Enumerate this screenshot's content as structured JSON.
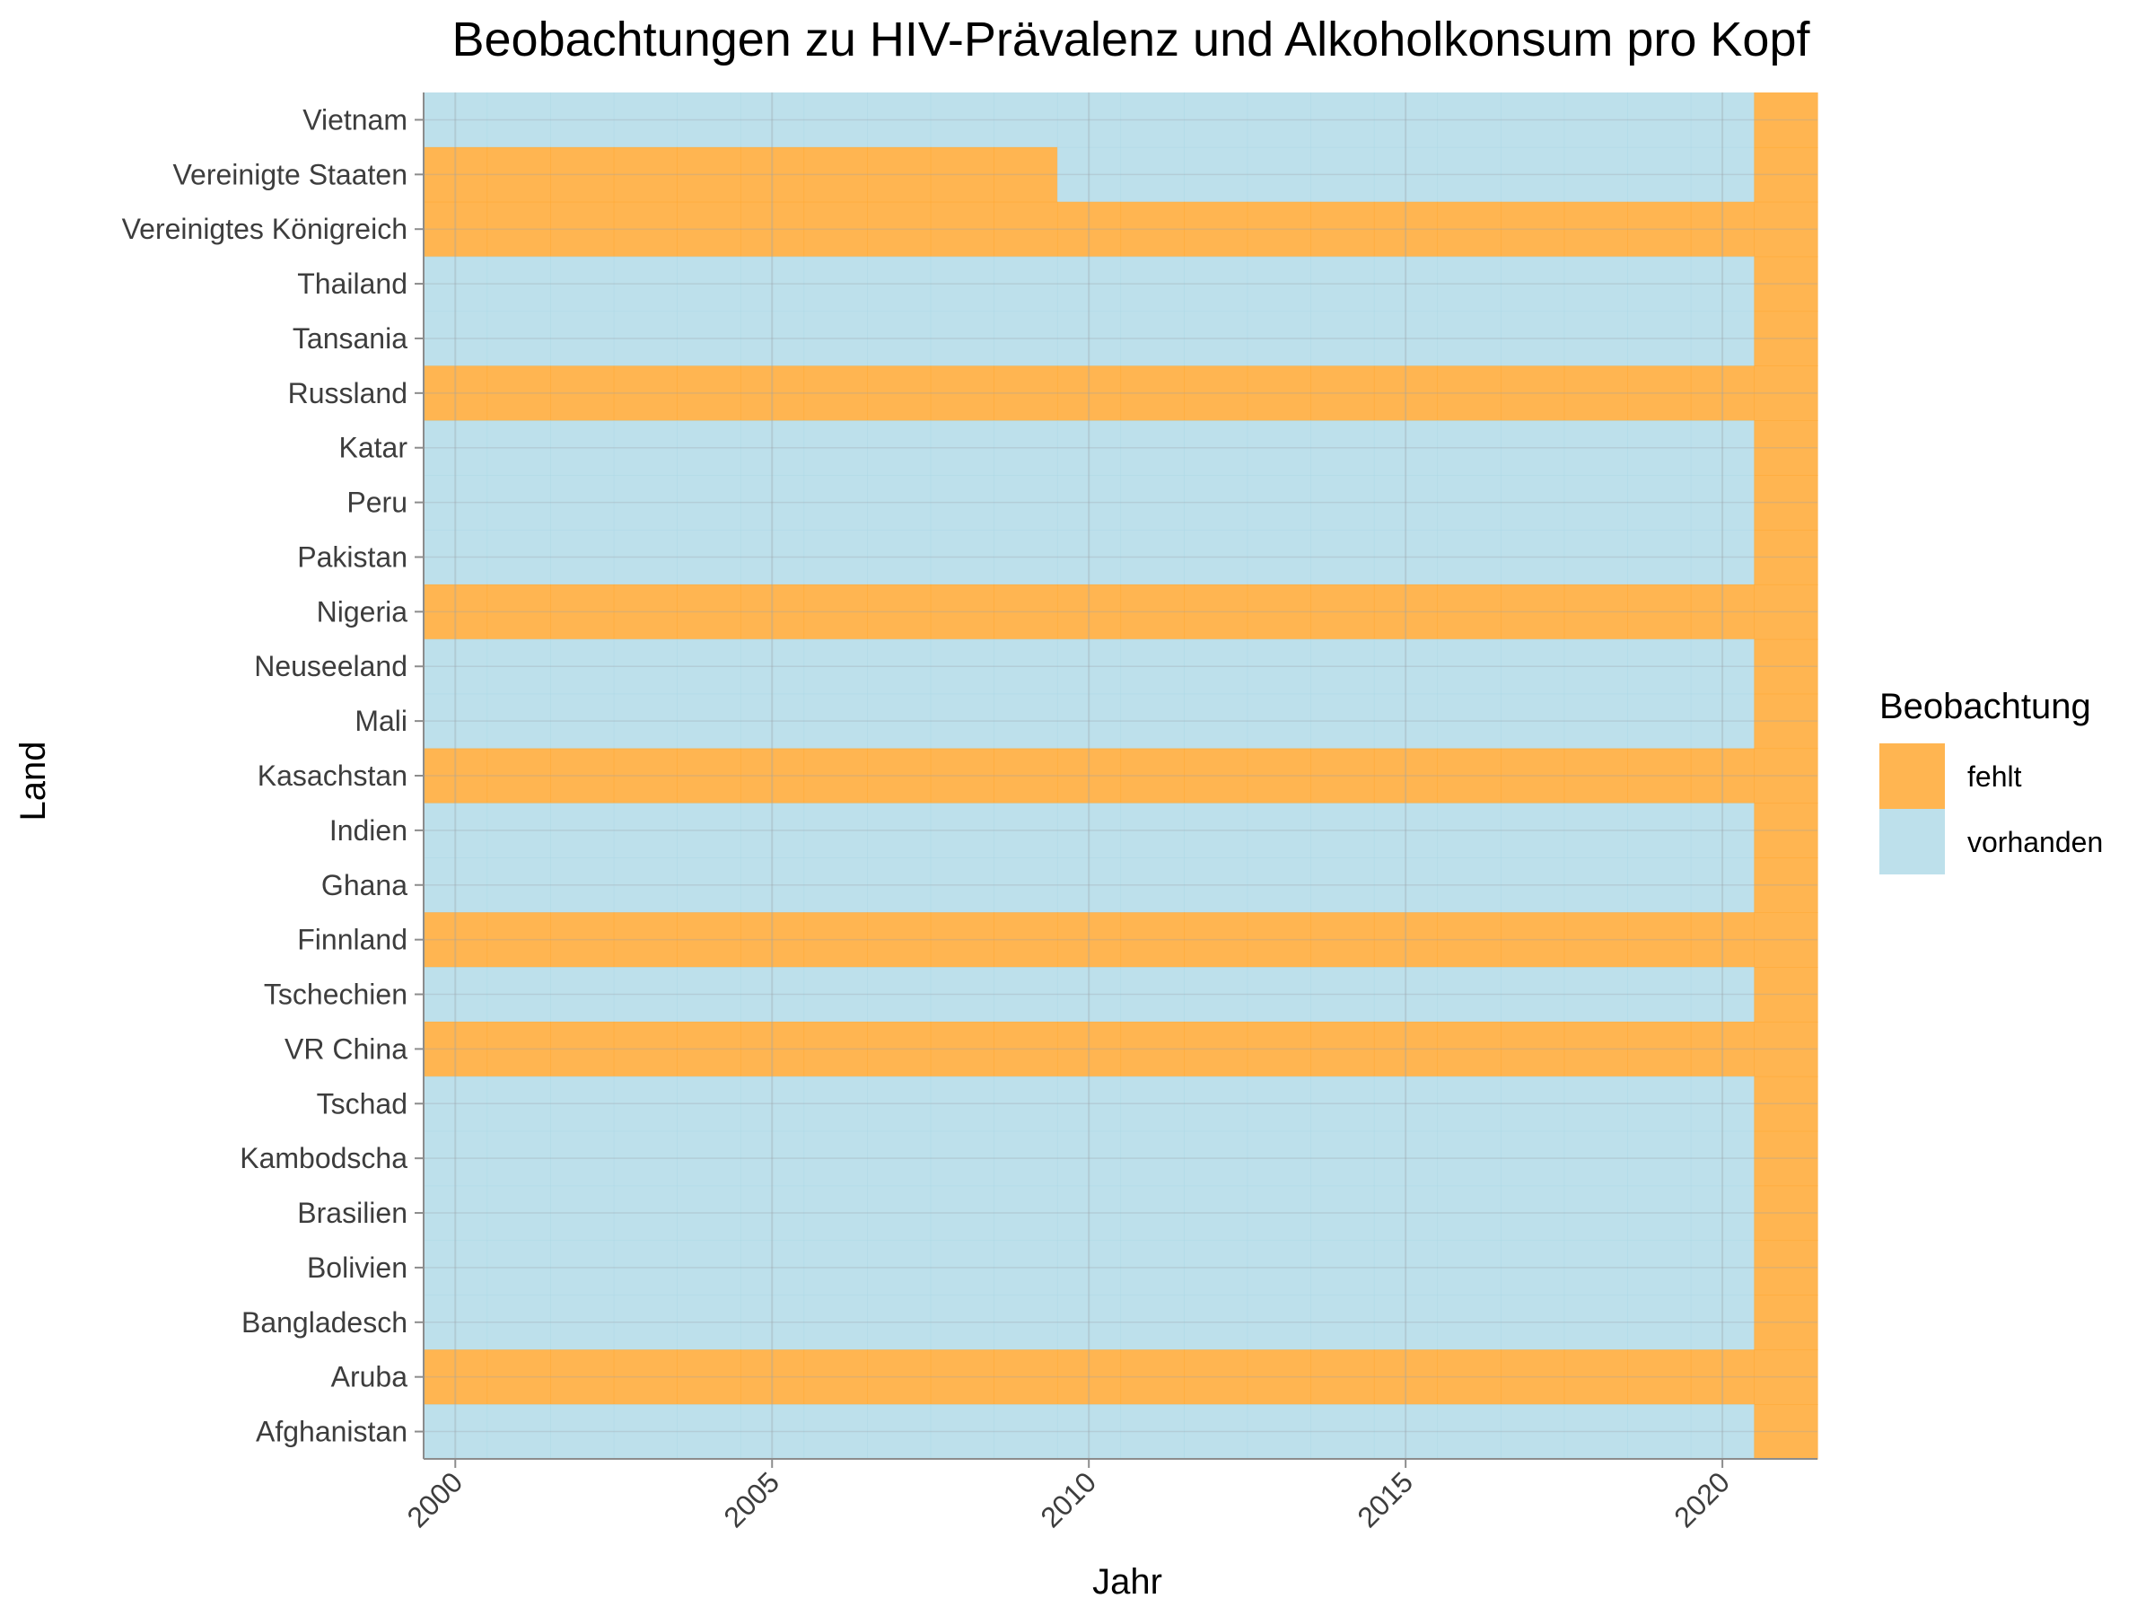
{
  "chart_data": {
    "type": "heatmap",
    "title": "Beobachtungen zu HIV-Prävalenz und Alkoholkonsum pro Kopf",
    "xlabel": "Jahr",
    "ylabel": "Land",
    "x_ticks": [
      2000,
      2005,
      2010,
      2015,
      2020
    ],
    "xlim": [
      1999.5,
      2021.5
    ],
    "x_tick_rotation": "45 degrees",
    "grid": true,
    "legend": {
      "title": "Beobachtung",
      "position": "right",
      "entries": [
        {
          "key": "fehlt",
          "label": "fehlt",
          "color": "#FFA833"
        },
        {
          "key": "vorhanden",
          "label": "vorhanden",
          "color": "#ADD8E6"
        }
      ]
    },
    "countries": [
      {
        "name": "Vietnam",
        "missing_years": [
          2021
        ]
      },
      {
        "name": "Vereinigte Staaten",
        "missing_years": [
          2000,
          2001,
          2002,
          2003,
          2004,
          2005,
          2006,
          2007,
          2008,
          2009,
          2021
        ]
      },
      {
        "name": "Vereinigtes Königreich",
        "missing_years": "all"
      },
      {
        "name": "Thailand",
        "missing_years": [
          2021
        ]
      },
      {
        "name": "Tansania",
        "missing_years": [
          2021
        ]
      },
      {
        "name": "Russland",
        "missing_years": "all"
      },
      {
        "name": "Katar",
        "missing_years": [
          2021
        ]
      },
      {
        "name": "Peru",
        "missing_years": [
          2021
        ]
      },
      {
        "name": "Pakistan",
        "missing_years": [
          2021
        ]
      },
      {
        "name": "Nigeria",
        "missing_years": "all"
      },
      {
        "name": "Neuseeland",
        "missing_years": [
          2021
        ]
      },
      {
        "name": "Mali",
        "missing_years": [
          2021
        ]
      },
      {
        "name": "Kasachstan",
        "missing_years": "all"
      },
      {
        "name": "Indien",
        "missing_years": [
          2021
        ]
      },
      {
        "name": "Ghana",
        "missing_years": [
          2021
        ]
      },
      {
        "name": "Finnland",
        "missing_years": "all"
      },
      {
        "name": "Tschechien",
        "missing_years": [
          2021
        ]
      },
      {
        "name": "VR China",
        "missing_years": "all"
      },
      {
        "name": "Tschad",
        "missing_years": [
          2021
        ]
      },
      {
        "name": "Kambodscha",
        "missing_years": [
          2021
        ]
      },
      {
        "name": "Brasilien",
        "missing_years": [
          2021
        ]
      },
      {
        "name": "Bolivien",
        "missing_years": [
          2021
        ]
      },
      {
        "name": "Bangladesch",
        "missing_years": [
          2021
        ]
      },
      {
        "name": "Aruba",
        "missing_years": "all"
      },
      {
        "name": "Afghanistan",
        "missing_years": [
          2021
        ]
      }
    ]
  }
}
